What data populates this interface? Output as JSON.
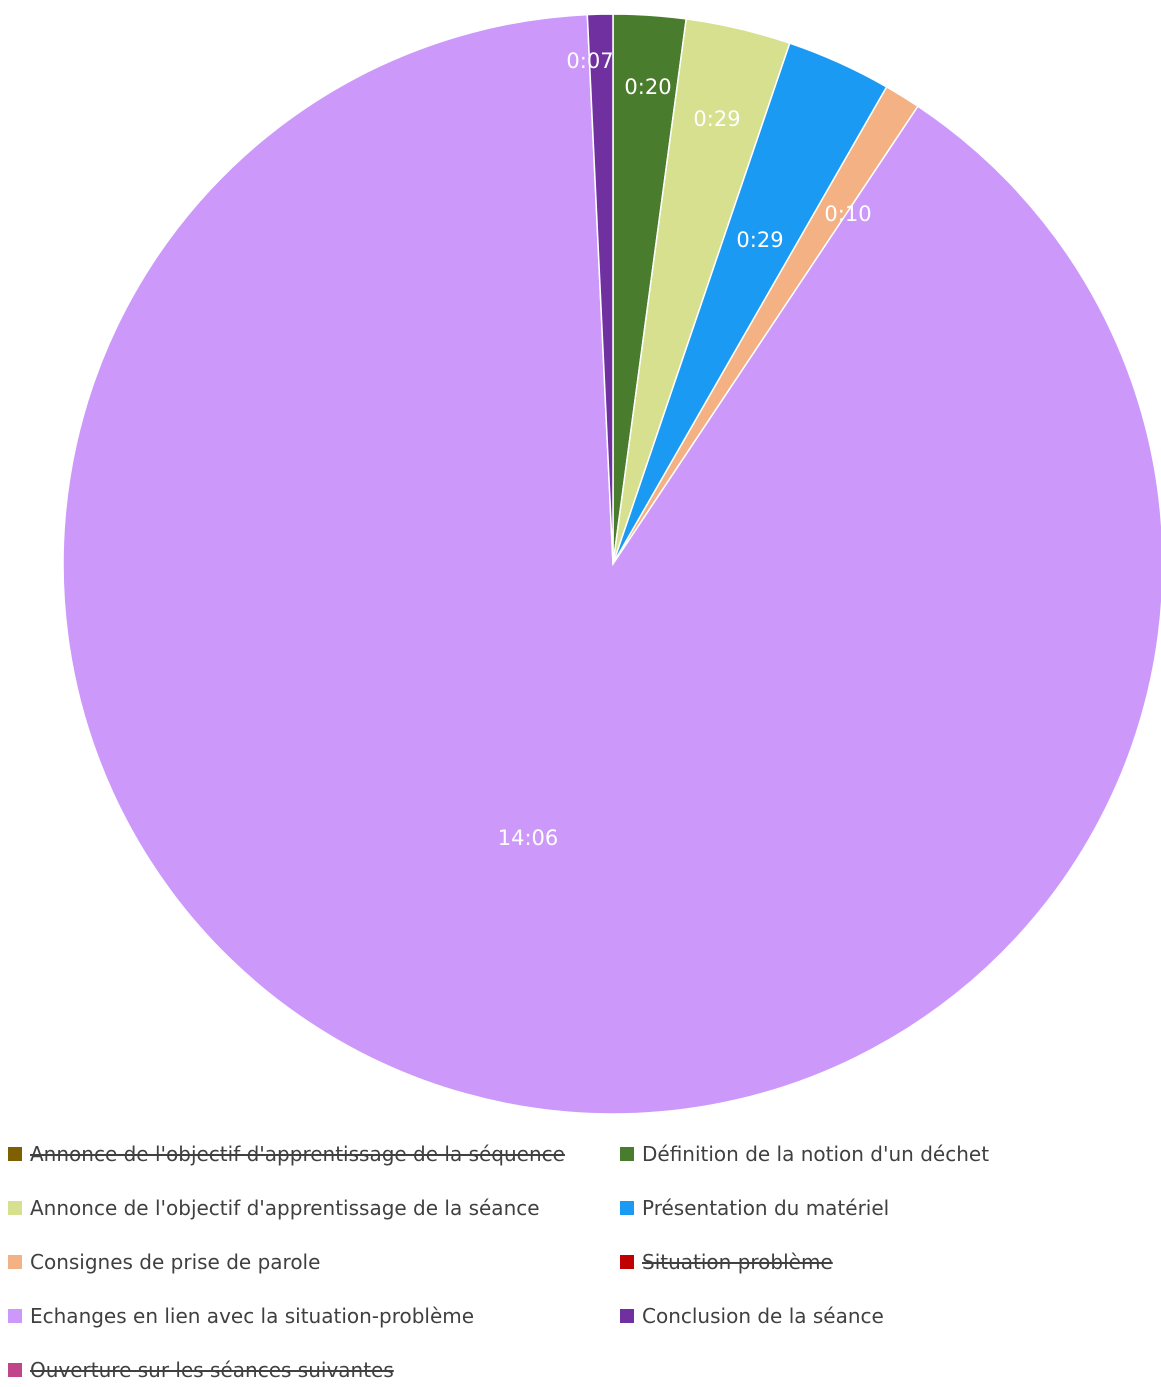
{
  "chart_data": {
    "type": "pie",
    "title": "",
    "series": [
      {
        "name": "Annonce de l'objectif d'apprentissage de la séquence",
        "value": 0,
        "label": "",
        "color": "#7f6000",
        "struck": true
      },
      {
        "name": "Définition de la notion d'un déchet",
        "value": 20,
        "label": "0:20",
        "color": "#4a7c2e",
        "struck": false
      },
      {
        "name": "Annonce de l'objectif d'apprentissage de la séance",
        "value": 29,
        "label": "0:29",
        "color": "#d6e08f",
        "struck": false
      },
      {
        "name": "Présentation du matériel",
        "value": 29,
        "label": "0:29",
        "color": "#1a9af2",
        "struck": false
      },
      {
        "name": "Consignes de prise de parole",
        "value": 10,
        "label": "0:10",
        "color": "#f4b183",
        "struck": false
      },
      {
        "name": "Situation problème",
        "value": 0,
        "label": "",
        "color": "#c00000",
        "struck": true
      },
      {
        "name": "Echanges en lien avec la situation-problème",
        "value": 846,
        "label": "14:06",
        "color": "#cc99fb",
        "struck": false
      },
      {
        "name": "Conclusion de la séance",
        "value": 7,
        "label": "0:07",
        "color": "#7030a0",
        "struck": false
      },
      {
        "name": "Ouverture sur les séances suivantes",
        "value": 0,
        "label": "",
        "color": "#c0458a",
        "struck": true
      }
    ],
    "legend_position": "bottom"
  },
  "legend": [
    {
      "label": "Annonce de l'objectif d'apprentissage de la séquence",
      "color": "#7f6000",
      "struck": true
    },
    {
      "label": "Définition de la notion d'un déchet",
      "color": "#4a7c2e",
      "struck": false
    },
    {
      "label": "Annonce de l'objectif d'apprentissage de la séance",
      "color": "#d6e08f",
      "struck": false
    },
    {
      "label": "Présentation du matériel",
      "color": "#1a9af2",
      "struck": false
    },
    {
      "label": "Consignes de prise de parole",
      "color": "#f4b183",
      "struck": false
    },
    {
      "label": "Situation problème",
      "color": "#c00000",
      "struck": true
    },
    {
      "label": "Echanges en lien avec la situation-problème",
      "color": "#cc99fb",
      "struck": false
    },
    {
      "label": "Conclusion de la séance",
      "color": "#7030a0",
      "struck": false
    },
    {
      "label": "Ouverture sur les séances suivantes",
      "color": "#c0458a",
      "struck": true
    }
  ]
}
